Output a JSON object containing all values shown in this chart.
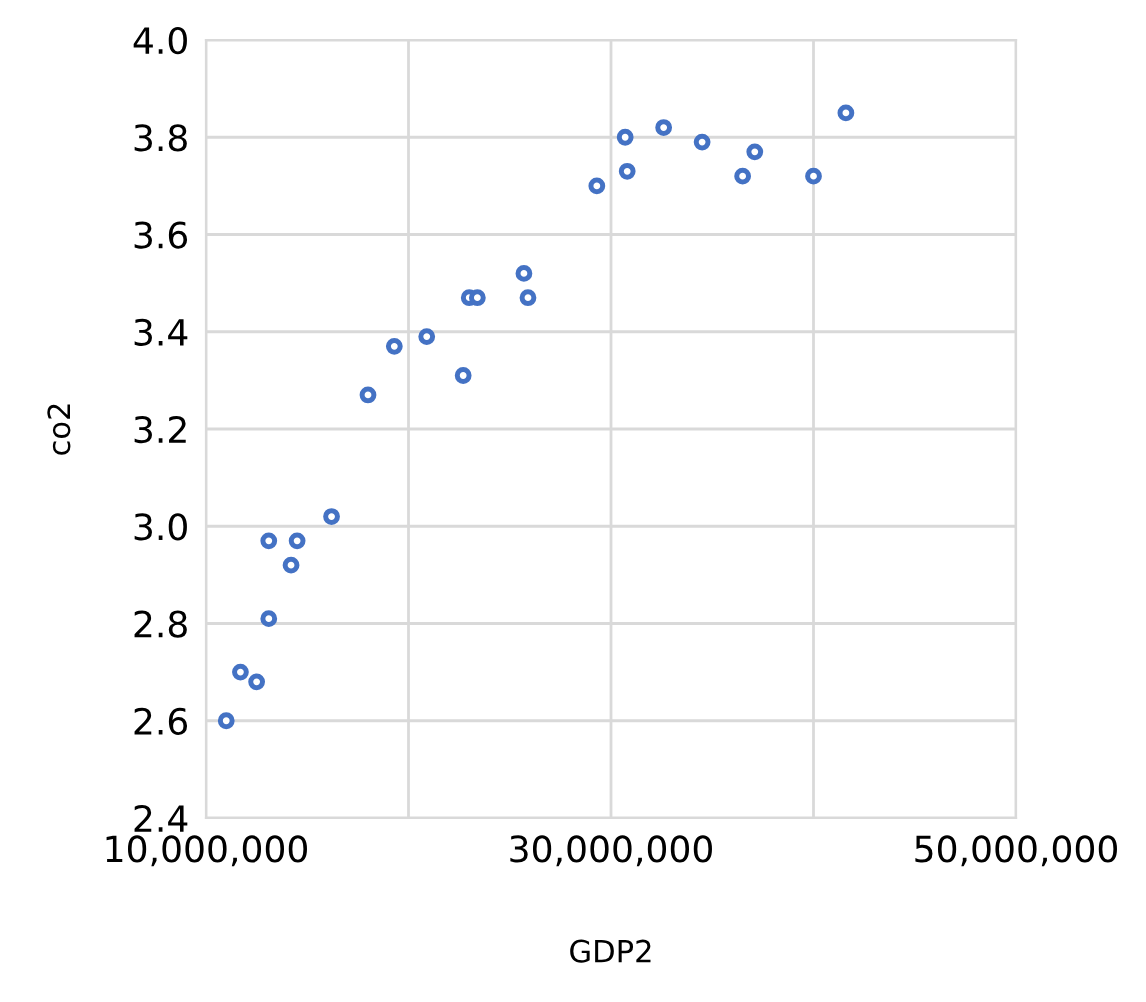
{
  "chart_data": {
    "type": "scatter",
    "xlabel": "GDP2",
    "ylabel": "co2",
    "x": [
      11000000,
      11700000,
      12500000,
      13100000,
      13100000,
      14200000,
      14500000,
      16200000,
      18000000,
      19300000,
      20900000,
      22700000,
      23000000,
      23400000,
      25700000,
      25900000,
      29300000,
      30700000,
      30800000,
      32600000,
      34500000,
      36500000,
      37100000,
      40000000,
      41600000
    ],
    "series": [
      {
        "color": "#4472c4",
        "values": [
          2.6,
          2.7,
          2.68,
          2.81,
          2.97,
          2.92,
          2.97,
          3.02,
          3.27,
          3.37,
          3.39,
          3.31,
          3.47,
          3.47,
          3.52,
          3.47,
          3.7,
          3.8,
          3.73,
          3.82,
          3.79,
          3.72,
          3.77,
          3.72,
          3.85
        ]
      }
    ],
    "xlim": [
      10000000,
      50000000
    ],
    "xticks": [
      {
        "value": 10000000,
        "label": "10,000,000"
      },
      {
        "value": 20000000,
        "label": null
      },
      {
        "value": 30000000,
        "label": "30,000,000"
      },
      {
        "value": 40000000,
        "label": null
      },
      {
        "value": 50000000,
        "label": "50,000,000"
      }
    ],
    "ylim": [
      2.4,
      4.0
    ],
    "yticks": [
      {
        "value": 2.4,
        "label": "2.4"
      },
      {
        "value": 2.6,
        "label": "2.6"
      },
      {
        "value": 2.8,
        "label": "2.8"
      },
      {
        "value": 3.0,
        "label": "3.0"
      },
      {
        "value": 3.2,
        "label": "3.2"
      },
      {
        "value": 3.4,
        "label": "3.4"
      },
      {
        "value": 3.6,
        "label": "3.6"
      },
      {
        "value": 3.8,
        "label": "3.8"
      },
      {
        "value": 4.0,
        "label": "4.0"
      }
    ],
    "grid": true,
    "marker": "circle"
  }
}
